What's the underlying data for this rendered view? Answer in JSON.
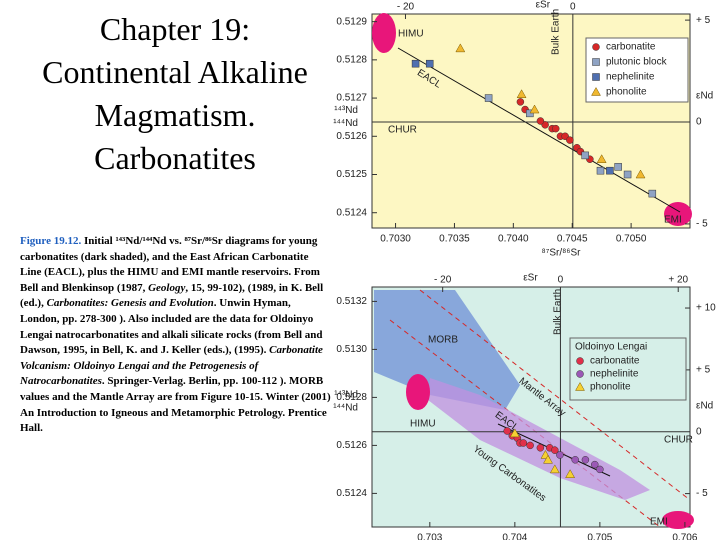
{
  "slide": {
    "title": [
      "Chapter 19:",
      "Continental Alkaline",
      "Magmatism.",
      "Carbonatites"
    ],
    "caption": [
      "Figure 19.12.",
      " Initial ¹⁴³Nd/¹⁴⁴Nd vs. ⁸⁷Sr/⁸⁶Sr diagrams for young carbonatites (dark shaded), and the East African Carbonatite Line (EACL), plus the HIMU and EMI mantle reservoirs. From Bell and Blenkinsop (1987, ",
      "Geology",
      ", 15, 99-102), (1989, in K. Bell (ed.), ",
      "Carbonatites: Genesis and Evolution",
      ". Unwin Hyman, London, pp. 278-300 ). Also included are the data for Oldoinyo Lengai natrocarbonatites and alkali silicate rocks (from Bell and Dawson, 1995, in Bell, K. and J. Keller (eds.), (1995). ",
      "Carbonatite Volcanism: Oldoinyo Lengai and the Petrogenesis of Natrocarbonatites",
      ". Springer-Verlag. Berlin, pp. 100-112 ). MORB values and the Mantle Array are from Figure 10-15.  Winter (2001) An Introduction to Igneous and Metamorphic Petrology. Prentice Hall."
    ]
  },
  "chart_data": [
    {
      "type": "scatter",
      "background": "#fdf7c3",
      "x_label": "⁸⁷Sr/⁸⁶Sr",
      "y_label": [
        "¹⁴³Nd",
        "¹⁴⁴Nd"
      ],
      "x2_label": "εSr",
      "y2_label": "εNd",
      "xlim": [
        0.7028,
        0.7055
      ],
      "xticks": [
        {
          "value": 0.703,
          "label": "0.7030"
        },
        0.7035,
        {
          "value": 0.704,
          "label": "0.7040"
        },
        0.7045,
        {
          "value": 0.705,
          "label": "0.7050"
        }
      ],
      "ylim": [
        0.51236,
        0.51292
      ],
      "yticks": [
        0.5124,
        0.5125,
        0.5126,
        0.5127,
        0.5128,
        0.5129
      ],
      "x2lim": [
        -24,
        14
      ],
      "x2ticks": [
        {
          "value": -20,
          "label": "- 20"
        },
        0
      ],
      "y2lim": [
        -5.2,
        5.3
      ],
      "y2ticks": [
        {
          "value": 5,
          "label": "+ 5"
        },
        0,
        {
          "value": -5,
          "label": "- 5"
        }
      ],
      "annotations": [
        "HIMU",
        "EACL",
        "CHUR",
        "EMI",
        "Bulk Earth"
      ],
      "series": [
        {
          "name": "carbonatite",
          "color": "#d62828",
          "marker": "circle",
          "x": [
            0.70406,
            0.7041,
            0.70427,
            0.70433,
            0.70436,
            0.7044,
            0.70444,
            0.70448,
            0.70454,
            0.70457,
            0.70465,
            0.70423
          ],
          "values": [
            0.51269,
            0.51267,
            0.51263,
            0.51262,
            0.51262,
            0.5126,
            0.5126,
            0.51259,
            0.51257,
            0.51256,
            0.51254,
            0.51264
          ]
        },
        {
          "name": "plutonic block",
          "color": "#8fa3c4",
          "marker": "square",
          "x": [
            0.70379,
            0.70414,
            0.70461,
            0.70474,
            0.70497,
            0.70518,
            0.70489
          ],
          "values": [
            0.5127,
            0.51266,
            0.51255,
            0.51251,
            0.5125,
            0.51245,
            0.51252
          ]
        },
        {
          "name": "nephelinite",
          "color": "#4f6fb0",
          "marker": "square",
          "x": [
            0.70317,
            0.70329,
            0.70482
          ],
          "values": [
            0.51279,
            0.51279,
            0.51251
          ]
        },
        {
          "name": "phonolite",
          "color": "#f0b830",
          "marker": "triangle",
          "x": [
            0.70355,
            0.70407,
            0.70418,
            0.70475,
            0.70508
          ],
          "values": [
            0.51283,
            0.51271,
            0.51267,
            0.51254,
            0.5125
          ]
        }
      ]
    },
    {
      "type": "scatter",
      "background": "#d6efe8",
      "x_label": "⁸⁷Sr/⁸⁶Sr",
      "y_label": [
        "¹⁴³Nd",
        "¹⁴⁴Nd"
      ],
      "x2_label": "εSr",
      "y2_label": "εNd",
      "legend_title": "Oldoinyo Lengai",
      "xlim": [
        0.70232,
        0.70606
      ],
      "xticks": [
        0.703,
        0.704,
        0.705,
        0.706
      ],
      "ylim": [
        0.51226,
        0.51326
      ],
      "yticks": [
        0.5124,
        0.5126,
        0.5128,
        {
          "value": 0.513,
          "label": "0.5130"
        },
        0.5132
      ],
      "x2lim": [
        -32,
        22
      ],
      "x2ticks": [
        {
          "value": -20,
          "label": "- 20"
        },
        0,
        {
          "value": 20,
          "label": "+ 20"
        }
      ],
      "y2lim": [
        -7.7,
        11.7
      ],
      "y2ticks": [
        {
          "value": 10,
          "label": "+ 10"
        },
        {
          "value": 5,
          "label": "+ 5"
        },
        0,
        {
          "value": -5,
          "label": "- 5"
        }
      ],
      "annotations": [
        "MORB",
        "HIMU",
        "EACL",
        "Mantle Array",
        "Young Carbonatites",
        "CHUR",
        "EMI",
        "Bulk Earth"
      ],
      "series": [
        {
          "name": "carbonatite",
          "color": "#e0304a",
          "marker": "circle",
          "x": [
            0.70391,
            0.70397,
            0.70403,
            0.70406,
            0.7041,
            0.70418,
            0.7043,
            0.70441,
            0.70447
          ],
          "values": [
            0.51266,
            0.51264,
            0.51263,
            0.51261,
            0.51261,
            0.5126,
            0.51259,
            0.51259,
            0.51258
          ]
        },
        {
          "name": "nephelinite",
          "color": "#9b59b6",
          "marker": "circle",
          "x": [
            0.70471,
            0.70483,
            0.70494,
            0.705,
            0.70453
          ],
          "values": [
            0.51254,
            0.51254,
            0.51252,
            0.5125,
            0.51256
          ]
        },
        {
          "name": "phonolite",
          "color": "#f5d033",
          "marker": "triangle",
          "x": [
            0.704,
            0.70436,
            0.70439,
            0.70447,
            0.70465
          ],
          "values": [
            0.51265,
            0.51256,
            0.51254,
            0.5125,
            0.51248
          ]
        }
      ]
    }
  ]
}
